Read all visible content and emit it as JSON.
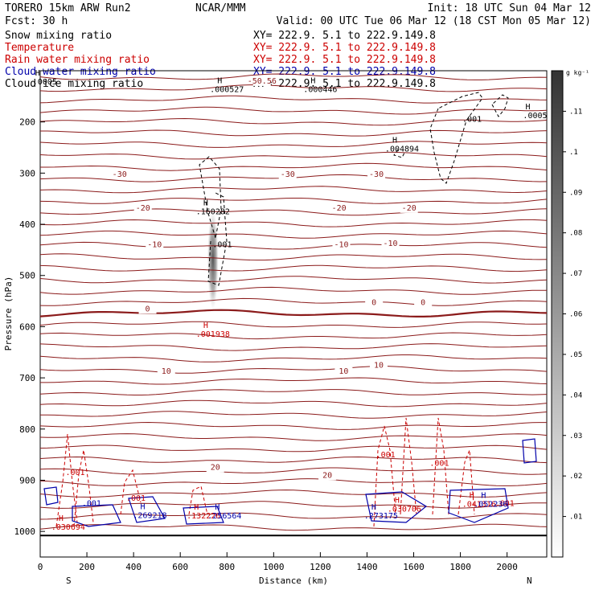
{
  "header": {
    "model": "TORERO  15km ARW   Run2",
    "org": "NCAR/MMM",
    "init": "Init: 18 UTC Sun 04 Mar 12",
    "fcst": "Fcst:   30 h",
    "valid": "Valid: 00 UTC Tue 06 Mar 12 (18 CST Mon 05 Mar 12)"
  },
  "legend": [
    {
      "name": "Snow mixing ratio",
      "xy": "XY= 222.9.  5.1 to 222.9.149.8",
      "color": "#000000"
    },
    {
      "name": "Temperature",
      "xy": "XY= 222.9.  5.1 to 222.9.149.8",
      "color": "#cc0000"
    },
    {
      "name": "Rain water mixing ratio",
      "xy": "XY= 222.9.  5.1 to 222.9.149.8",
      "color": "#cc0000"
    },
    {
      "name": "Cloud water mixing ratio",
      "xy": "XY= 222.9.  5.1 to 222.9.149.8",
      "color": "#0000aa"
    },
    {
      "name": "Cloud ice mixing ratio",
      "xy": "XY= 222.9.  5.1 to 222.9.149.8",
      "color": "#000000"
    }
  ],
  "chart_data": {
    "type": "contour",
    "xlabel": "Distance (km)",
    "ylabel": "Pressure (hPa)",
    "xlim": [
      0,
      2170
    ],
    "ylim": [
      1050,
      100
    ],
    "x_ticks": [
      0,
      200,
      400,
      600,
      800,
      1000,
      1200,
      1400,
      1600,
      1800,
      2000
    ],
    "y_ticks": [
      200,
      300,
      400,
      500,
      600,
      700,
      800,
      900,
      1000
    ],
    "left_end": "S",
    "right_end": "N",
    "colorbar": {
      "unit": "g kg⁻¹",
      "ticks": [
        ".01",
        ".02",
        ".03",
        ".04",
        ".05",
        ".06",
        ".07",
        ".08",
        ".09",
        ".1",
        ".11"
      ],
      "range": [
        0,
        0.12
      ]
    },
    "temperature_labels": [
      {
        "text": "-30",
        "x": 340,
        "p": 307
      },
      {
        "text": "-30",
        "x": 1060,
        "p": 307
      },
      {
        "text": "-30",
        "x": 1440,
        "p": 307
      },
      {
        "text": "-20",
        "x": 440,
        "p": 373
      },
      {
        "text": "-20",
        "x": 1280,
        "p": 373
      },
      {
        "text": "-20",
        "x": 1580,
        "p": 373
      },
      {
        "text": "-10",
        "x": 490,
        "p": 445
      },
      {
        "text": "-10",
        "x": 1290,
        "p": 445
      },
      {
        "text": "-10",
        "x": 1500,
        "p": 442
      },
      {
        "text": "0",
        "x": 460,
        "p": 570
      },
      {
        "text": "0",
        "x": 1430,
        "p": 558
      },
      {
        "text": "0",
        "x": 1640,
        "p": 558
      },
      {
        "text": "10",
        "x": 540,
        "p": 692
      },
      {
        "text": "10",
        "x": 1300,
        "p": 692
      },
      {
        "text": "10",
        "x": 1450,
        "p": 680
      },
      {
        "text": "20",
        "x": 750,
        "p": 880
      },
      {
        "text": "20",
        "x": 1230,
        "p": 895
      },
      {
        "text": "-50.56",
        "x": 950,
        "p": 125
      }
    ],
    "maxima": [
      {
        "text": ".000527",
        "x": 800,
        "p": 142,
        "color": "#000000"
      },
      {
        "text": ".000446",
        "x": 1200,
        "p": 142,
        "color": "#000000"
      },
      {
        "text": ".004894",
        "x": 1550,
        "p": 258,
        "color": "#000000"
      },
      {
        "text": ".0005",
        "x": 2120,
        "p": 193,
        "color": "#000000"
      },
      {
        "text": ".0005",
        "x": 20,
        "p": 127,
        "color": "#000000"
      },
      {
        "text": ".160282",
        "x": 740,
        "p": 380,
        "color": "#000000"
      },
      {
        "text": ".001938",
        "x": 740,
        "p": 620,
        "color": "#cc0000"
      },
      {
        "text": ".030694",
        "x": 120,
        "p": 997,
        "color": "#cc0000"
      },
      {
        "text": ".269218",
        "x": 470,
        "p": 974,
        "color": "#0000aa"
      },
      {
        "text": ".132226",
        "x": 700,
        "p": 975,
        "color": "#cc0000"
      },
      {
        "text": ".256564",
        "x": 790,
        "p": 975,
        "color": "#0000aa"
      },
      {
        "text": ".273175",
        "x": 1460,
        "p": 975,
        "color": "#0000aa"
      },
      {
        "text": ".030706",
        "x": 1560,
        "p": 961,
        "color": "#cc0000"
      },
      {
        "text": ".041316",
        "x": 1880,
        "p": 952,
        "color": "#cc0000"
      },
      {
        "text": ".052236",
        "x": 1930,
        "p": 952,
        "color": "#0000aa"
      }
    ],
    "contour_labels": [
      {
        "text": ".001",
        "x": 780,
        "p": 445,
        "color": "#000000"
      },
      {
        "text": ".001",
        "x": 1850,
        "p": 200,
        "color": "#000000"
      },
      {
        "text": ".001",
        "x": 150,
        "p": 890,
        "color": "#cc0000"
      },
      {
        "text": ".001",
        "x": 410,
        "p": 940,
        "color": "#cc0000"
      },
      {
        "text": ".001",
        "x": 220,
        "p": 950,
        "color": "#0000aa"
      },
      {
        "text": ".001",
        "x": 1480,
        "p": 855,
        "color": "#cc0000"
      },
      {
        "text": ".001",
        "x": 1710,
        "p": 872,
        "color": "#cc0000"
      },
      {
        "text": ".001",
        "x": 1990,
        "p": 950,
        "color": "#cc0000"
      }
    ]
  }
}
